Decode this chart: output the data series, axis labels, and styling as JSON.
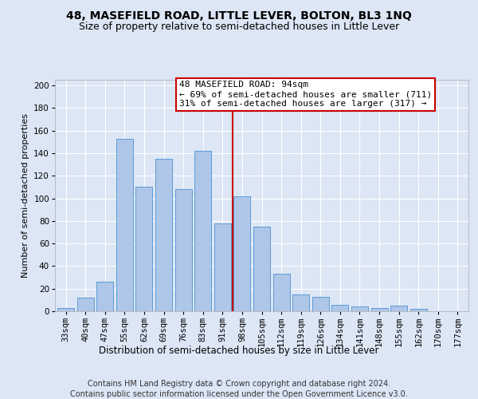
{
  "title": "48, MASEFIELD ROAD, LITTLE LEVER, BOLTON, BL3 1NQ",
  "subtitle": "Size of property relative to semi-detached houses in Little Lever",
  "xlabel": "Distribution of semi-detached houses by size in Little Lever",
  "ylabel": "Number of semi-detached properties",
  "footnote1": "Contains HM Land Registry data © Crown copyright and database right 2024.",
  "footnote2": "Contains public sector information licensed under the Open Government Licence v3.0.",
  "categories": [
    "33sqm",
    "40sqm",
    "47sqm",
    "55sqm",
    "62sqm",
    "69sqm",
    "76sqm",
    "83sqm",
    "91sqm",
    "98sqm",
    "105sqm",
    "112sqm",
    "119sqm",
    "126sqm",
    "134sqm",
    "141sqm",
    "148sqm",
    "155sqm",
    "162sqm",
    "170sqm",
    "177sqm"
  ],
  "values": [
    3,
    12,
    26,
    153,
    110,
    135,
    108,
    142,
    78,
    102,
    75,
    33,
    15,
    13,
    6,
    4,
    3,
    5,
    2,
    0,
    0
  ],
  "bar_color": "#aec6e8",
  "bar_edge_color": "#5b9bd5",
  "vline_x": 8.5,
  "vline_color": "#cc0000",
  "annotation_text": "48 MASEFIELD ROAD: 94sqm\n← 69% of semi-detached houses are smaller (711)\n31% of semi-detached houses are larger (317) →",
  "annotation_box_color": "#cc0000",
  "ylim": [
    0,
    205
  ],
  "yticks": [
    0,
    20,
    40,
    60,
    80,
    100,
    120,
    140,
    160,
    180,
    200
  ],
  "background_color": "#dce6f5",
  "plot_bg_color": "#dce6f5",
  "title_fontsize": 10,
  "subtitle_fontsize": 9,
  "xlabel_fontsize": 8.5,
  "ylabel_fontsize": 8,
  "tick_fontsize": 7.5,
  "annotation_fontsize": 8,
  "footnote_fontsize": 7
}
